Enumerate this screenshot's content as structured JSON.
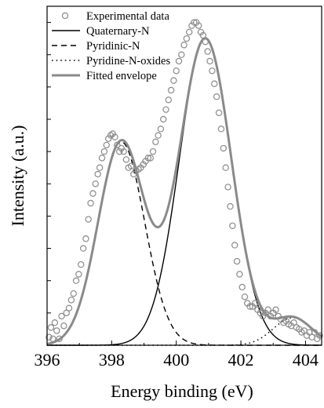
{
  "chart_data": {
    "type": "line",
    "xlabel": "Energy binding (eV)",
    "ylabel": "Intensity (a.u.)",
    "xlim": [
      396,
      404.5
    ],
    "ylim": [
      0,
      1.05
    ],
    "x_ticks": [
      "396",
      "398",
      "400",
      "402",
      "404"
    ],
    "y_ticks_labeled": false,
    "grid": false,
    "legend_position": "top-left",
    "series": [
      {
        "name": "Experimental data",
        "style": "open-circle-markers",
        "color": "#8a8a8a"
      },
      {
        "name": "Quaternary-N",
        "style": "solid",
        "color": "#000000",
        "peak": {
          "center": 400.9,
          "height": 0.95,
          "fwhm": 1.9
        }
      },
      {
        "name": "Pyridinic-N",
        "style": "dashed",
        "color": "#000000",
        "peak": {
          "center": 398.3,
          "height": 0.63,
          "fwhm": 1.7
        }
      },
      {
        "name": "Pyridine-N-oxides",
        "style": "dotted",
        "color": "#000000",
        "peak": {
          "center": 403.6,
          "height": 0.085,
          "fwhm": 1.4
        }
      },
      {
        "name": "Fitted envelope",
        "style": "thick-solid",
        "color": "#8a8a8a"
      }
    ],
    "experimental_points": {
      "x": [
        396.06,
        396.12,
        396.18,
        396.24,
        396.3,
        396.38,
        396.45,
        396.52,
        396.6,
        396.68,
        396.75,
        396.82,
        396.9,
        396.98,
        397.05,
        397.12,
        397.2,
        397.28,
        397.35,
        397.42,
        397.5,
        397.57,
        397.63,
        397.7,
        397.77,
        397.84,
        397.9,
        397.97,
        398.03,
        398.1,
        398.17,
        398.24,
        398.3,
        398.37,
        398.45,
        398.52,
        398.6,
        398.68,
        398.75,
        398.83,
        398.9,
        398.98,
        399.05,
        399.13,
        399.2,
        399.28,
        399.36,
        399.44,
        399.52,
        399.6,
        399.68,
        399.76,
        399.84,
        399.92,
        400.0,
        400.08,
        400.16,
        400.24,
        400.32,
        400.4,
        400.48,
        400.55,
        400.62,
        400.69,
        400.76,
        400.83,
        400.9,
        400.97,
        401.04,
        401.11,
        401.18,
        401.25,
        401.32,
        401.39,
        401.46,
        401.53,
        401.6,
        401.67,
        401.74,
        401.81,
        401.88,
        401.96,
        402.04,
        402.12,
        402.2,
        402.28,
        402.36,
        402.44,
        402.52,
        402.6,
        402.68,
        402.76,
        402.84,
        402.92,
        403.0,
        403.08,
        403.16,
        403.24,
        403.32,
        403.4,
        403.48,
        403.56,
        403.64,
        403.72,
        403.8,
        403.88,
        403.96,
        404.04,
        404.12,
        404.2,
        404.28,
        404.36,
        404.44
      ],
      "y": [
        0.025,
        0.055,
        0.02,
        0.07,
        0.045,
        0.02,
        0.09,
        0.06,
        0.1,
        0.115,
        0.14,
        0.16,
        0.2,
        0.22,
        0.25,
        0.3,
        0.33,
        0.39,
        0.44,
        0.47,
        0.5,
        0.53,
        0.55,
        0.58,
        0.6,
        0.62,
        0.64,
        0.65,
        0.655,
        0.645,
        0.62,
        0.6,
        0.61,
        0.6,
        0.575,
        0.55,
        0.555,
        0.53,
        0.54,
        0.545,
        0.55,
        0.56,
        0.57,
        0.58,
        0.58,
        0.6,
        0.63,
        0.65,
        0.67,
        0.7,
        0.73,
        0.76,
        0.79,
        0.82,
        0.85,
        0.88,
        0.9,
        0.93,
        0.95,
        0.97,
        0.99,
        1.0,
        1.0,
        0.99,
        0.97,
        0.96,
        0.94,
        0.91,
        0.88,
        0.85,
        0.81,
        0.77,
        0.72,
        0.67,
        0.61,
        0.55,
        0.49,
        0.43,
        0.37,
        0.31,
        0.26,
        0.22,
        0.18,
        0.15,
        0.13,
        0.12,
        0.12,
        0.13,
        0.11,
        0.1,
        0.09,
        0.1,
        0.11,
        0.09,
        0.1,
        0.11,
        0.09,
        0.08,
        0.07,
        0.075,
        0.065,
        0.06,
        0.07,
        0.055,
        0.05,
        0.04,
        0.045,
        0.03,
        0.04,
        0.025,
        0.04,
        0.02,
        0.03
      ]
    }
  }
}
